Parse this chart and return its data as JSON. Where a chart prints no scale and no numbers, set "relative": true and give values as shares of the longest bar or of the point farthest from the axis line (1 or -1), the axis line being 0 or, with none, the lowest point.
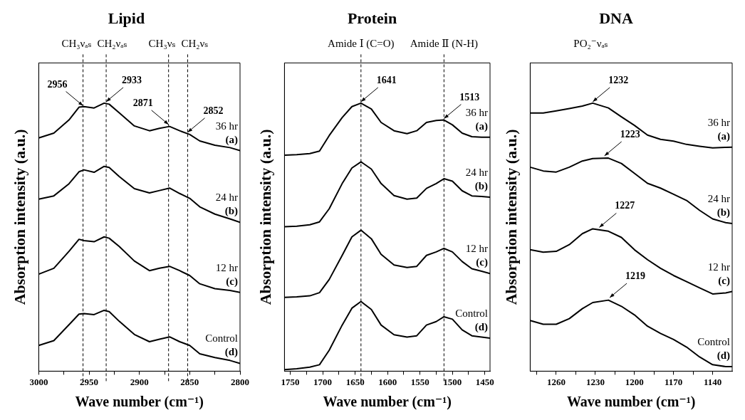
{
  "chart_data": [
    {
      "type": "line",
      "title": "Lipid",
      "xlabel": "Wave number (cm⁻¹)",
      "ylabel": "Absorption intensity (a.u.)",
      "relative": true,
      "xlim": [
        3000,
        2800
      ],
      "xticks": [
        3000,
        {
          "value": 2975,
          "label": null
        },
        2950,
        {
          "value": 2925,
          "label": null
        },
        2900,
        {
          "value": 2875,
          "label": null
        },
        2850,
        {
          "value": 2825,
          "label": null
        },
        2800
      ],
      "x": [
        3000,
        2985,
        2970,
        2960,
        2955,
        2945,
        2935,
        2930,
        2920,
        2905,
        2890,
        2880,
        2870,
        2860,
        2850,
        2840,
        2825,
        2810,
        2800
      ],
      "series": [
        {
          "name": "36 hr",
          "color": "#000000",
          "values": [
            0.87,
            0.888,
            0.937,
            0.985,
            0.987,
            0.982,
            1.0,
            0.996,
            0.964,
            0.915,
            0.897,
            0.906,
            0.913,
            0.897,
            0.883,
            0.859,
            0.843,
            0.834,
            0.823
          ]
        },
        {
          "name": "24 hr",
          "color": "#000000",
          "values": [
            0.642,
            0.654,
            0.699,
            0.744,
            0.751,
            0.742,
            0.764,
            0.76,
            0.726,
            0.681,
            0.665,
            0.674,
            0.683,
            0.663,
            0.645,
            0.613,
            0.586,
            0.568,
            0.555
          ]
        },
        {
          "name": "12 hr",
          "color": "#000000",
          "values": [
            0.362,
            0.384,
            0.447,
            0.492,
            0.487,
            0.483,
            0.501,
            0.496,
            0.465,
            0.411,
            0.375,
            0.384,
            0.391,
            0.375,
            0.357,
            0.326,
            0.308,
            0.301,
            0.294
          ]
        },
        {
          "name": "Control",
          "color": "#000000",
          "values": [
            0.096,
            0.114,
            0.173,
            0.213,
            0.215,
            0.211,
            0.227,
            0.222,
            0.186,
            0.137,
            0.11,
            0.119,
            0.128,
            0.11,
            0.096,
            0.065,
            0.051,
            0.04,
            0.029
          ]
        }
      ],
      "ref_lines": [
        {
          "axis": "x",
          "value": 2956,
          "label": "CH₃νₐₛ",
          "line_style": "dashed"
        },
        {
          "axis": "x",
          "value": 2933,
          "label": "CH₂νₐₛ",
          "line_style": "dashed"
        },
        {
          "axis": "x",
          "value": 2871,
          "label": "CH₃νₛ",
          "line_style": "dashed"
        },
        {
          "axis": "x",
          "value": 2852,
          "label": "CH₂νₛ",
          "line_style": "dashed"
        }
      ],
      "annotations": [
        "(a)",
        "(b)",
        "(c)",
        "(d)",
        {
          "text": "2956",
          "x": 2956,
          "y": 0.985
        },
        {
          "text": "2933",
          "x": 2933,
          "y": 1.0
        },
        {
          "text": "2871",
          "x": 2871,
          "y": 0.915
        },
        {
          "text": "2852",
          "x": 2852,
          "y": 0.886
        }
      ]
    },
    {
      "type": "line",
      "title": "Protein",
      "xlabel": "Wave number (cm⁻¹)",
      "ylabel": "Absorption intensity (a.u.)",
      "relative": true,
      "xlim": [
        1759,
        1442
      ],
      "xticks": [
        1750,
        {
          "value": 1725,
          "label": null
        },
        1700,
        {
          "value": 1675,
          "label": null
        },
        1650,
        {
          "value": 1625,
          "label": null
        },
        1600,
        {
          "value": 1575,
          "label": null
        },
        1550,
        {
          "value": 1525,
          "label": null
        },
        1500,
        {
          "value": 1475,
          "label": null
        },
        1450
      ],
      "x": [
        1759,
        1740,
        1720,
        1705,
        1690,
        1670,
        1655,
        1641,
        1625,
        1610,
        1590,
        1570,
        1555,
        1540,
        1525,
        1513,
        1500,
        1485,
        1470,
        1455,
        1442
      ],
      "series": [
        {
          "name": "36 hr",
          "color": "#000000",
          "values": [
            0.806,
            0.808,
            0.812,
            0.821,
            0.879,
            0.946,
            0.987,
            1.0,
            0.978,
            0.928,
            0.897,
            0.886,
            0.897,
            0.928,
            0.935,
            0.937,
            0.919,
            0.888,
            0.875,
            0.873,
            0.873
          ]
        },
        {
          "name": "24 hr",
          "color": "#000000",
          "values": [
            0.539,
            0.541,
            0.546,
            0.557,
            0.606,
            0.7,
            0.758,
            0.781,
            0.754,
            0.7,
            0.655,
            0.642,
            0.646,
            0.682,
            0.7,
            0.718,
            0.709,
            0.673,
            0.654,
            0.652,
            0.649
          ]
        },
        {
          "name": "12 hr",
          "color": "#000000",
          "values": [
            0.275,
            0.277,
            0.281,
            0.293,
            0.342,
            0.432,
            0.501,
            0.526,
            0.494,
            0.436,
            0.396,
            0.387,
            0.391,
            0.432,
            0.445,
            0.458,
            0.445,
            0.409,
            0.382,
            0.373,
            0.364
          ]
        },
        {
          "name": "Control",
          "color": "#000000",
          "values": [
            0.006,
            0.009,
            0.015,
            0.024,
            0.078,
            0.172,
            0.235,
            0.26,
            0.23,
            0.172,
            0.136,
            0.127,
            0.132,
            0.172,
            0.185,
            0.203,
            0.194,
            0.154,
            0.132,
            0.127,
            0.123
          ]
        }
      ],
      "ref_lines": [
        {
          "axis": "x",
          "value": 1641,
          "label": "Amide Ⅰ (C=O)",
          "line_style": "dashed"
        },
        {
          "axis": "x",
          "value": 1513,
          "label": "Amide Ⅱ (N-H)",
          "line_style": "dashed"
        }
      ],
      "annotations": [
        "(a)",
        "(b)",
        "(c)",
        "(d)",
        {
          "text": "1641",
          "x": 1641,
          "y": 1.0
        },
        {
          "text": "1513",
          "x": 1513,
          "y": 0.937
        }
      ]
    },
    {
      "type": "line",
      "title": "DNA",
      "xlabel": "Wave number (cm⁻¹)",
      "ylabel": "Absorption intensity (a.u.)",
      "relative": true,
      "xlim": [
        1280,
        1125
      ],
      "xticks": [
        {
          "value": 1275,
          "label": null
        },
        1260,
        {
          "value": 1245,
          "label": null
        },
        1230,
        {
          "value": 1215,
          "label": null
        },
        1200,
        {
          "value": 1185,
          "label": null
        },
        1170,
        {
          "value": 1155,
          "label": null
        },
        1140
      ],
      "x": [
        1280,
        1270,
        1260,
        1250,
        1240,
        1232,
        1220,
        1210,
        1200,
        1190,
        1180,
        1170,
        1160,
        1150,
        1140,
        1130,
        1125
      ],
      "series": [
        {
          "name": "36 hr",
          "color": "#000000",
          "values": [
            0.963,
            0.963,
            0.971,
            0.98,
            0.989,
            1.0,
            0.982,
            0.949,
            0.917,
            0.881,
            0.865,
            0.858,
            0.846,
            0.839,
            0.833,
            0.835,
            0.836
          ]
        },
        {
          "name": "24 hr",
          "color": "#000000",
          "values": [
            0.761,
            0.747,
            0.743,
            0.761,
            0.784,
            0.793,
            0.795,
            0.775,
            0.738,
            0.701,
            0.683,
            0.66,
            0.637,
            0.6,
            0.568,
            0.554,
            0.551
          ]
        },
        {
          "name": "12 hr",
          "color": "#000000",
          "values": [
            0.453,
            0.444,
            0.447,
            0.472,
            0.513,
            0.531,
            0.522,
            0.499,
            0.453,
            0.416,
            0.384,
            0.357,
            0.334,
            0.311,
            0.288,
            0.292,
            0.297
          ]
        },
        {
          "name": "Control",
          "color": "#000000",
          "values": [
            0.189,
            0.175,
            0.175,
            0.196,
            0.233,
            0.256,
            0.265,
            0.242,
            0.21,
            0.168,
            0.141,
            0.118,
            0.09,
            0.053,
            0.024,
            0.017,
            0.017
          ]
        }
      ],
      "annotations": [
        "(a)",
        "(b)",
        "(c)",
        "(d)",
        "PO₂⁻νₐₛ",
        {
          "text": "1232",
          "x": 1232,
          "y": 1.0
        },
        {
          "text": "1223",
          "x": 1223,
          "y": 0.798
        },
        {
          "text": "1227",
          "x": 1227,
          "y": 0.531
        },
        {
          "text": "1219",
          "x": 1219,
          "y": 0.269
        }
      ]
    }
  ]
}
